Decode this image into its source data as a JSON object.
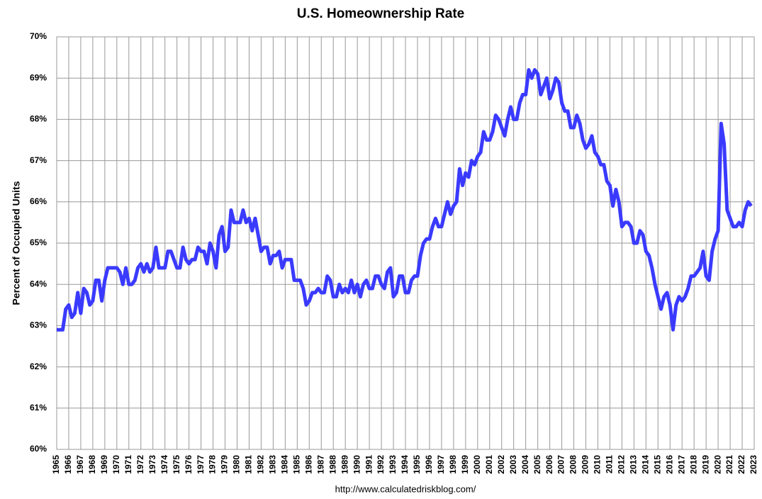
{
  "chart_data": {
    "type": "line",
    "title": "U.S. Homeownership Rate",
    "ylabel": "Percent of Occupied Units",
    "source": "http://www.calculatedriskblog.com/",
    "x": [
      1965,
      1965.25,
      1965.5,
      1965.75,
      1966,
      1966.25,
      1966.5,
      1966.75,
      1967,
      1967.25,
      1967.5,
      1967.75,
      1968,
      1968.25,
      1968.5,
      1968.75,
      1969,
      1969.25,
      1969.5,
      1969.75,
      1970,
      1970.25,
      1970.5,
      1970.75,
      1971,
      1971.25,
      1971.5,
      1971.75,
      1972,
      1972.25,
      1972.5,
      1972.75,
      1973,
      1973.25,
      1973.5,
      1973.75,
      1974,
      1974.25,
      1974.5,
      1974.75,
      1975,
      1975.25,
      1975.5,
      1975.75,
      1976,
      1976.25,
      1976.5,
      1976.75,
      1977,
      1977.25,
      1977.5,
      1977.75,
      1978,
      1978.25,
      1978.5,
      1978.75,
      1979,
      1979.25,
      1979.5,
      1979.75,
      1980,
      1980.25,
      1980.5,
      1980.75,
      1981,
      1981.25,
      1981.5,
      1981.75,
      1982,
      1982.25,
      1982.5,
      1982.75,
      1983,
      1983.25,
      1983.5,
      1983.75,
      1984,
      1984.25,
      1984.5,
      1984.75,
      1985,
      1985.25,
      1985.5,
      1985.75,
      1986,
      1986.25,
      1986.5,
      1986.75,
      1987,
      1987.25,
      1987.5,
      1987.75,
      1988,
      1988.25,
      1988.5,
      1988.75,
      1989,
      1989.25,
      1989.5,
      1989.75,
      1990,
      1990.25,
      1990.5,
      1990.75,
      1991,
      1991.25,
      1991.5,
      1991.75,
      1992,
      1992.25,
      1992.5,
      1992.75,
      1993,
      1993.25,
      1993.5,
      1993.75,
      1994,
      1994.25,
      1994.5,
      1994.75,
      1995,
      1995.25,
      1995.5,
      1995.75,
      1996,
      1996.25,
      1996.5,
      1996.75,
      1997,
      1997.25,
      1997.5,
      1997.75,
      1998,
      1998.25,
      1998.5,
      1998.75,
      1999,
      1999.25,
      1999.5,
      1999.75,
      2000,
      2000.25,
      2000.5,
      2000.75,
      2001,
      2001.25,
      2001.5,
      2001.75,
      2002,
      2002.25,
      2002.5,
      2002.75,
      2003,
      2003.25,
      2003.5,
      2003.75,
      2004,
      2004.25,
      2004.5,
      2004.75,
      2005,
      2005.25,
      2005.5,
      2005.75,
      2006,
      2006.25,
      2006.5,
      2006.75,
      2007,
      2007.25,
      2007.5,
      2007.75,
      2008,
      2008.25,
      2008.5,
      2008.75,
      2009,
      2009.25,
      2009.5,
      2009.75,
      2010,
      2010.25,
      2010.5,
      2010.75,
      2011,
      2011.25,
      2011.5,
      2011.75,
      2012,
      2012.25,
      2012.5,
      2012.75,
      2013,
      2013.25,
      2013.5,
      2013.75,
      2014,
      2014.25,
      2014.5,
      2014.75,
      2015,
      2015.25,
      2015.5,
      2015.75,
      2016,
      2016.25,
      2016.5,
      2016.75,
      2017,
      2017.25,
      2017.5,
      2017.75,
      2018,
      2018.25,
      2018.5,
      2018.75,
      2019,
      2019.25,
      2019.5,
      2019.75,
      2020,
      2020.25,
      2020.5,
      2020.75,
      2021,
      2021.25,
      2021.5,
      2021.75,
      2022,
      2022.25,
      2022.5,
      2022.75
    ],
    "series": [
      {
        "name": "Homeownership Rate",
        "color": "#3a3aff",
        "values": [
          62.9,
          62.9,
          62.9,
          63.4,
          63.5,
          63.2,
          63.3,
          63.8,
          63.3,
          63.9,
          63.8,
          63.5,
          63.6,
          64.1,
          64.1,
          63.6,
          64.1,
          64.4,
          64.4,
          64.4,
          64.4,
          64.3,
          64.0,
          64.4,
          64.0,
          64.0,
          64.1,
          64.4,
          64.5,
          64.3,
          64.5,
          64.3,
          64.4,
          64.9,
          64.4,
          64.4,
          64.4,
          64.8,
          64.8,
          64.6,
          64.4,
          64.4,
          64.9,
          64.6,
          64.5,
          64.6,
          64.6,
          64.9,
          64.8,
          64.8,
          64.5,
          65.0,
          64.8,
          64.4,
          65.2,
          65.4,
          64.8,
          64.9,
          65.8,
          65.5,
          65.5,
          65.5,
          65.8,
          65.5,
          65.6,
          65.3,
          65.6,
          65.2,
          64.8,
          64.9,
          64.9,
          64.5,
          64.7,
          64.7,
          64.8,
          64.4,
          64.6,
          64.6,
          64.6,
          64.1,
          64.1,
          64.1,
          63.9,
          63.5,
          63.6,
          63.8,
          63.8,
          63.9,
          63.8,
          63.8,
          64.2,
          64.1,
          63.7,
          63.7,
          64.0,
          63.8,
          63.9,
          63.8,
          64.1,
          63.8,
          64.0,
          63.7,
          64.0,
          64.1,
          63.9,
          63.9,
          64.2,
          64.2,
          64.0,
          63.9,
          64.3,
          64.4,
          63.7,
          63.8,
          64.2,
          64.2,
          63.8,
          63.8,
          64.1,
          64.2,
          64.2,
          64.7,
          65.0,
          65.1,
          65.1,
          65.4,
          65.6,
          65.4,
          65.4,
          65.7,
          66.0,
          65.7,
          65.9,
          66.0,
          66.8,
          66.4,
          66.7,
          66.6,
          67.0,
          66.9,
          67.1,
          67.2,
          67.7,
          67.5,
          67.5,
          67.7,
          68.1,
          68.0,
          67.8,
          67.6,
          68.0,
          68.3,
          68.0,
          68.0,
          68.4,
          68.6,
          68.6,
          69.2,
          69.0,
          69.2,
          69.1,
          68.6,
          68.8,
          69.0,
          68.5,
          68.7,
          69.0,
          68.9,
          68.4,
          68.2,
          68.2,
          67.8,
          67.8,
          68.1,
          67.9,
          67.5,
          67.3,
          67.4,
          67.6,
          67.2,
          67.1,
          66.9,
          66.9,
          66.5,
          66.4,
          65.9,
          66.3,
          66.0,
          65.4,
          65.5,
          65.5,
          65.4,
          65.0,
          65.0,
          65.3,
          65.2,
          64.8,
          64.7,
          64.4,
          64.0,
          63.7,
          63.4,
          63.7,
          63.8,
          63.5,
          62.9,
          63.5,
          63.7,
          63.6,
          63.7,
          63.9,
          64.2,
          64.2,
          64.3,
          64.4,
          64.8,
          64.2,
          64.1,
          64.8,
          65.1,
          65.3,
          67.9,
          67.4,
          65.8,
          65.6,
          65.4,
          65.4,
          65.5,
          65.4,
          65.8,
          66.0,
          65.9
        ]
      }
    ],
    "xlim": [
      1965,
      2023
    ],
    "xticks": [
      1965,
      1966,
      1967,
      1968,
      1969,
      1970,
      1971,
      1972,
      1973,
      1974,
      1975,
      1976,
      1977,
      1978,
      1979,
      1980,
      1981,
      1982,
      1983,
      1984,
      1985,
      1986,
      1987,
      1988,
      1989,
      1990,
      1991,
      1992,
      1993,
      1994,
      1995,
      1996,
      1997,
      1998,
      1999,
      2000,
      2001,
      2002,
      2003,
      2004,
      2005,
      2006,
      2007,
      2008,
      2009,
      2010,
      2011,
      2012,
      2013,
      2014,
      2015,
      2016,
      2017,
      2018,
      2019,
      2020,
      2021,
      2022,
      2023
    ],
    "ylim": [
      60,
      70
    ],
    "yticks": [
      {
        "value": 60,
        "label": "60%"
      },
      {
        "value": 61,
        "label": "61%"
      },
      {
        "value": 62,
        "label": "62%"
      },
      {
        "value": 63,
        "label": "63%"
      },
      {
        "value": 64,
        "label": "64%"
      },
      {
        "value": 65,
        "label": "65%"
      },
      {
        "value": 66,
        "label": "66%"
      },
      {
        "value": 67,
        "label": "67%"
      },
      {
        "value": 68,
        "label": "68%"
      },
      {
        "value": 69,
        "label": "69%"
      },
      {
        "value": 70,
        "label": "70%"
      }
    ],
    "grid": true
  }
}
